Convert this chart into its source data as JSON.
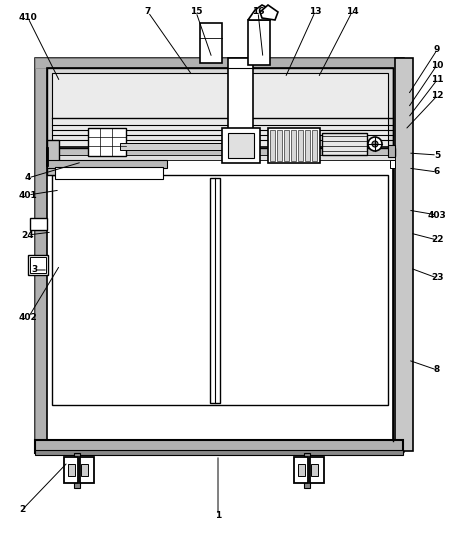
{
  "bg_color": "#ffffff",
  "figsize": [
    4.49,
    5.36
  ],
  "dpi": 100,
  "annotations": [
    [
      "410",
      28,
      18,
      60,
      82
    ],
    [
      "7",
      148,
      12,
      192,
      75
    ],
    [
      "15",
      196,
      12,
      212,
      58
    ],
    [
      "16",
      258,
      12,
      263,
      58
    ],
    [
      "13",
      315,
      12,
      285,
      78
    ],
    [
      "14",
      352,
      12,
      318,
      78
    ],
    [
      "9",
      437,
      50,
      408,
      95
    ],
    [
      "10",
      437,
      65,
      408,
      108
    ],
    [
      "11",
      437,
      80,
      408,
      118
    ],
    [
      "12",
      437,
      96,
      405,
      130
    ],
    [
      "5",
      437,
      155,
      408,
      153
    ],
    [
      "6",
      437,
      172,
      408,
      168
    ],
    [
      "4",
      28,
      178,
      82,
      162
    ],
    [
      "401",
      28,
      195,
      60,
      190
    ],
    [
      "24",
      28,
      235,
      52,
      232
    ],
    [
      "3",
      35,
      270,
      48,
      270
    ],
    [
      "402",
      28,
      318,
      60,
      265
    ],
    [
      "403",
      437,
      215,
      408,
      210
    ],
    [
      "22",
      437,
      240,
      410,
      233
    ],
    [
      "23",
      437,
      278,
      410,
      268
    ],
    [
      "8",
      437,
      370,
      408,
      360
    ],
    [
      "2",
      22,
      510,
      68,
      462
    ],
    [
      "1",
      218,
      515,
      218,
      455
    ]
  ]
}
